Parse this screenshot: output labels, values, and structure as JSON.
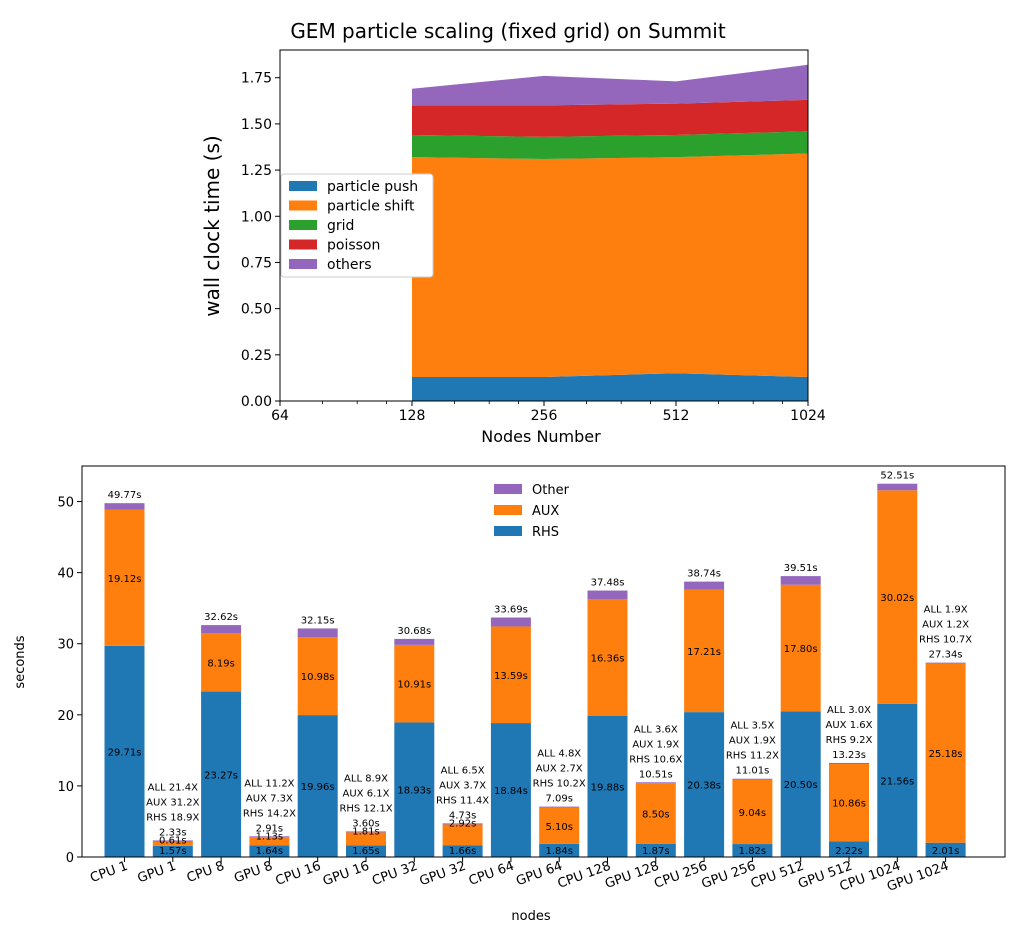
{
  "colors": {
    "blue": "#1f77b4",
    "orange": "#ff7f0e",
    "green": "#2ca02c",
    "red": "#d62728",
    "purple": "#9467bd"
  },
  "chart_data": [
    {
      "type": "area",
      "title": "GEM particle scaling (fixed grid) on Summit",
      "xlabel": "Nodes Number",
      "ylabel": "wall clock time (s)",
      "x_scale": "log2",
      "x_ticks": [
        "64",
        "128",
        "256",
        "512",
        "1024"
      ],
      "xlim": [
        64,
        1024
      ],
      "ylim": [
        0,
        1.9
      ],
      "y_ticks": [
        "0.00",
        "0.25",
        "0.50",
        "0.75",
        "1.00",
        "1.25",
        "1.50",
        "1.75"
      ],
      "legend_position": "center-left",
      "x": [
        128,
        256,
        512,
        1024
      ],
      "series": [
        {
          "name": "particle push",
          "color": "#1f77b4",
          "values": [
            0.13,
            0.13,
            0.15,
            0.13
          ]
        },
        {
          "name": "particle shift",
          "color": "#ff7f0e",
          "values": [
            1.19,
            1.18,
            1.17,
            1.21
          ]
        },
        {
          "name": "grid",
          "color": "#2ca02c",
          "values": [
            0.12,
            0.12,
            0.12,
            0.12
          ]
        },
        {
          "name": "poisson",
          "color": "#d62728",
          "values": [
            0.16,
            0.17,
            0.17,
            0.17
          ]
        },
        {
          "name": "others",
          "color": "#9467bd",
          "values": [
            0.09,
            0.16,
            0.12,
            0.19
          ]
        }
      ]
    },
    {
      "type": "bar",
      "stacked": true,
      "xlabel": "nodes",
      "ylabel": "seconds",
      "ylim": [
        0,
        55
      ],
      "y_ticks": [
        "0",
        "10",
        "20",
        "30",
        "40",
        "50"
      ],
      "legend_position": "top-center",
      "categories": [
        "CPU 1",
        "GPU 1",
        "CPU 8",
        "GPU 8",
        "CPU 16",
        "GPU 16",
        "CPU 32",
        "GPU 32",
        "CPU 64",
        "GPU 64",
        "CPU 128",
        "GPU 128",
        "CPU 256",
        "GPU 256",
        "CPU 512",
        "GPU 512",
        "CPU 1024",
        "GPU 1024"
      ],
      "series": [
        {
          "name": "RHS",
          "color": "#1f77b4",
          "values": [
            29.71,
            1.57,
            23.27,
            1.64,
            19.96,
            1.65,
            18.93,
            1.66,
            18.84,
            1.84,
            19.88,
            1.87,
            20.38,
            1.82,
            20.5,
            2.22,
            21.56,
            2.01
          ]
        },
        {
          "name": "AUX",
          "color": "#ff7f0e",
          "values": [
            19.12,
            0.61,
            8.19,
            1.13,
            10.98,
            1.81,
            10.91,
            2.92,
            13.59,
            5.1,
            16.36,
            8.5,
            17.21,
            9.04,
            17.8,
            10.86,
            30.02,
            25.18
          ]
        },
        {
          "name": "Other",
          "color": "#9467bd",
          "values": [
            0.94,
            0.15,
            1.16,
            0.14,
            1.21,
            0.14,
            0.84,
            0.15,
            1.26,
            0.15,
            1.24,
            0.14,
            1.15,
            0.15,
            1.21,
            0.15,
            0.93,
            0.15
          ]
        }
      ],
      "rhs_labels": [
        "29.71s",
        "1.57s",
        "23.27s",
        "1.64s",
        "19.96s",
        "1.65s",
        "18.93s",
        "1.66s",
        "18.84s",
        "1.84s",
        "19.88s",
        "1.87s",
        "20.38s",
        "1.82s",
        "20.50s",
        "2.22s",
        "21.56s",
        "2.01s"
      ],
      "aux_labels": [
        "19.12s",
        "0.61s",
        "8.19s",
        "1.13s",
        "10.98s",
        "1.81s",
        "10.91s",
        "2.92s",
        "13.59s",
        "5.10s",
        "16.36s",
        "8.50s",
        "17.21s",
        "9.04s",
        "17.80s",
        "10.86s",
        "30.02s",
        "25.18s"
      ],
      "total_labels": [
        "49.77s",
        "2.33s",
        "32.62s",
        "2.91s",
        "32.15s",
        "3.60s",
        "30.68s",
        "4.73s",
        "33.69s",
        "7.09s",
        "37.48s",
        "10.51s",
        "38.74s",
        "11.01s",
        "39.51s",
        "13.23s",
        "52.51s",
        "27.34s"
      ],
      "speedup_labels": [
        null,
        [
          "ALL 21.4X",
          "AUX 31.2X",
          "RHS 18.9X"
        ],
        null,
        [
          "ALL 11.2X",
          "AUX  7.3X",
          "RHS 14.2X"
        ],
        null,
        [
          "ALL  8.9X",
          "AUX  6.1X",
          "RHS 12.1X"
        ],
        null,
        [
          "ALL  6.5X",
          "AUX  3.7X",
          "RHS 11.4X"
        ],
        null,
        [
          "ALL  4.8X",
          "AUX  2.7X",
          "RHS 10.2X"
        ],
        null,
        [
          "ALL  3.6X",
          "AUX  1.9X",
          "RHS 10.6X"
        ],
        null,
        [
          "ALL  3.5X",
          "AUX  1.9X",
          "RHS 11.2X"
        ],
        null,
        [
          "ALL  3.0X",
          "AUX  1.6X",
          "RHS  9.2X"
        ],
        null,
        [
          "ALL  1.9X",
          "AUX  1.2X",
          "RHS 10.7X"
        ]
      ]
    }
  ]
}
